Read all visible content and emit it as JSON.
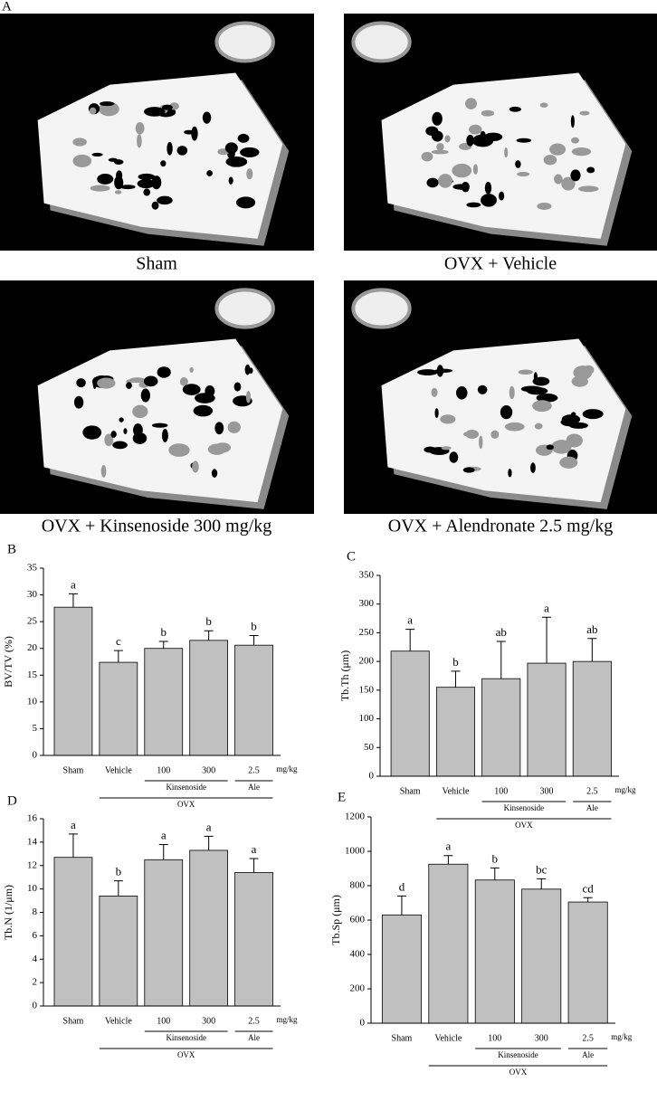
{
  "panel_a": {
    "label": "A",
    "images": [
      {
        "caption": "Sham"
      },
      {
        "caption": "OVX + Vehicle"
      },
      {
        "caption": "OVX + Kinsenoside 300 mg/kg"
      },
      {
        "caption": "OVX + Alendronate 2.5 mg/kg"
      }
    ]
  },
  "chart_data": [
    {
      "type": "bar",
      "panel": "B",
      "ylabel": "BV/TV (%)",
      "categories": [
        "Sham",
        "Vehicle",
        "100",
        "300",
        "2.5"
      ],
      "unit": "mg/kg",
      "groups": [
        "Kinsenoside",
        "Ale",
        "OVX"
      ],
      "values": [
        27.7,
        17.4,
        20,
        21.5,
        20.6
      ],
      "errors": [
        2.5,
        2.2,
        1.3,
        1.8,
        1.8
      ],
      "annotations": [
        "a",
        "c",
        "b",
        "b",
        "b"
      ],
      "ylim": [
        0,
        35
      ],
      "yticks": [
        0,
        5,
        10,
        15,
        20,
        25,
        30,
        35
      ],
      "color": "#c0c0c0"
    },
    {
      "type": "bar",
      "panel": "C",
      "ylabel": "Tb.Th (μm)",
      "categories": [
        "Sham",
        "Vehicle",
        "100",
        "300",
        "2.5"
      ],
      "unit": "mg/kg",
      "groups": [
        "Kinsenoside",
        "Ale",
        "OVX"
      ],
      "values": [
        218,
        155,
        170,
        197,
        200
      ],
      "errors": [
        38,
        28,
        65,
        80,
        40
      ],
      "annotations": [
        "a",
        "b",
        "ab",
        "a",
        "ab"
      ],
      "ylim": [
        0,
        350
      ],
      "yticks": [
        0,
        50,
        100,
        150,
        200,
        250,
        300,
        350
      ],
      "color": "#c0c0c0"
    },
    {
      "type": "bar",
      "panel": "D",
      "ylabel": "Tb.N (1/μm)",
      "categories": [
        "Sham",
        "Vehicle",
        "100",
        "300",
        "2.5"
      ],
      "unit": "mg/kg",
      "groups": [
        "Kinsenoside",
        "Ale",
        "OVX"
      ],
      "values": [
        12.7,
        9.4,
        12.5,
        13.3,
        11.4
      ],
      "errors": [
        2,
        1.3,
        1.3,
        1.2,
        1.2
      ],
      "annotations": [
        "a",
        "b",
        "a",
        "a",
        "a"
      ],
      "ylim": [
        0,
        16
      ],
      "yticks": [
        0,
        2,
        4,
        6,
        8,
        10,
        12,
        14,
        16
      ],
      "color": "#c0c0c0"
    },
    {
      "type": "bar",
      "panel": "E",
      "ylabel": "Tb.Sp (μm)",
      "categories": [
        "Sham",
        "Vehicle",
        "100",
        "300",
        "2.5"
      ],
      "unit": "mg/kg",
      "groups": [
        "Kinsenoside",
        "Ale",
        "OVX"
      ],
      "values": [
        630,
        925,
        833,
        780,
        705
      ],
      "errors": [
        110,
        50,
        70,
        60,
        25
      ],
      "annotations": [
        "d",
        "a",
        "b",
        "bc",
        "cd"
      ],
      "ylim": [
        0,
        1200
      ],
      "yticks": [
        0,
        200,
        400,
        600,
        800,
        1000,
        1200
      ],
      "color": "#c0c0c0"
    }
  ]
}
